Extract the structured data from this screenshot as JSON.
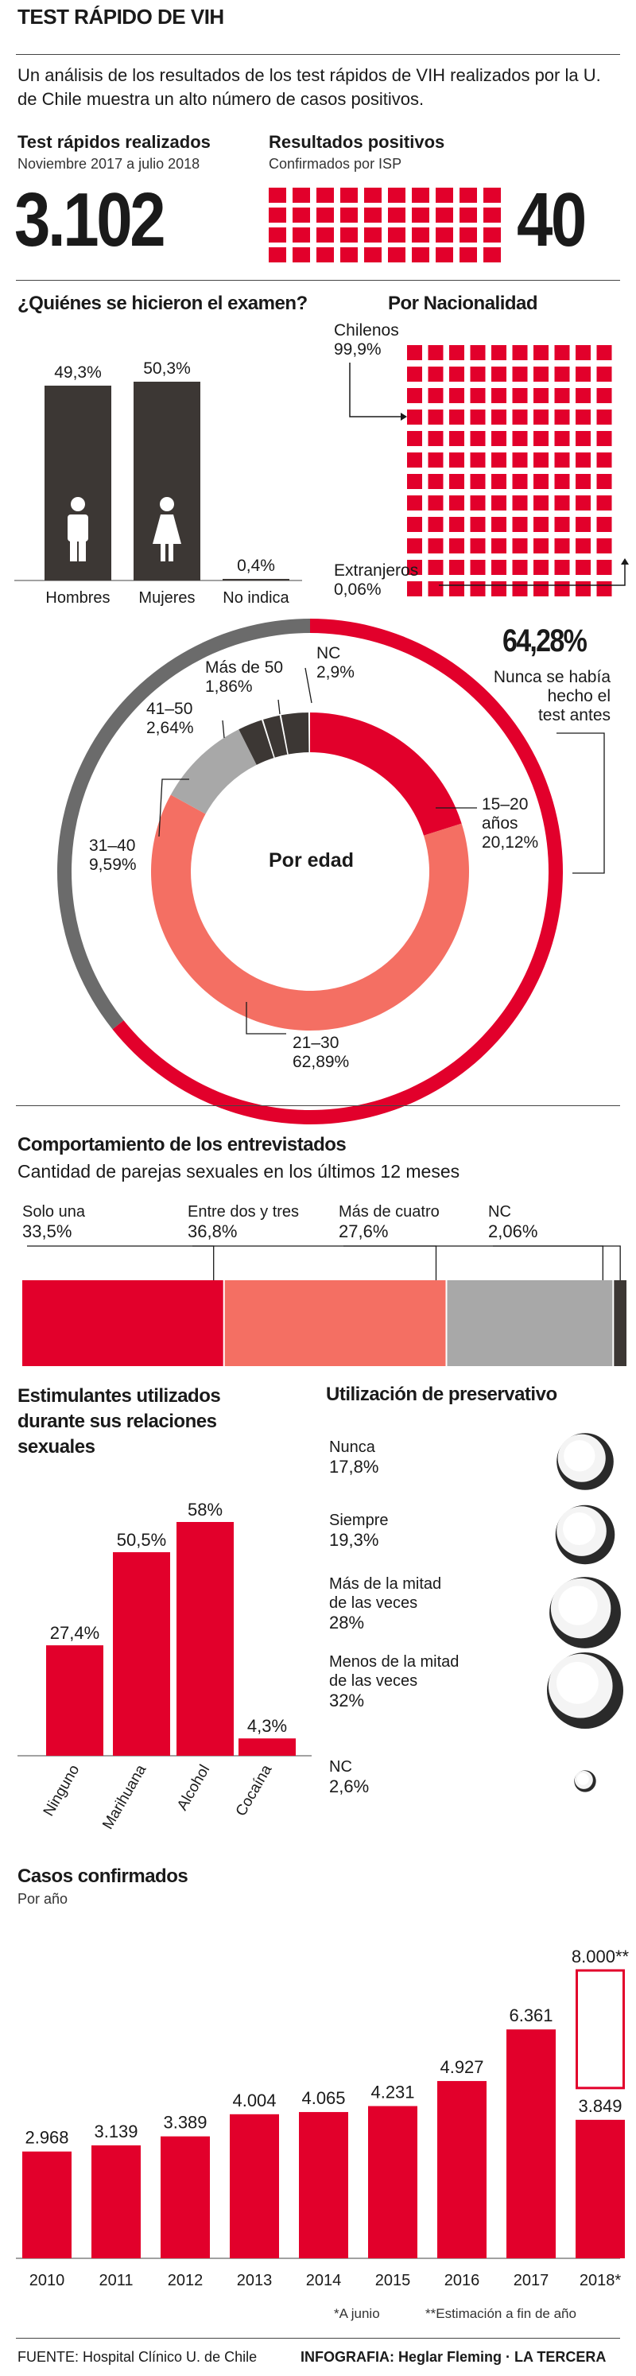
{
  "header": {
    "title": "TEST RÁPIDO DE VIH",
    "intro": "Un análisis de los resultados de los test rápidos de VIH realizados por la U. de Chile muestra un alto número de casos positivos.",
    "tests_title": "Test rápidos realizados",
    "tests_period": "Noviembre 2017 a julio 2018",
    "tests_value": "3.102",
    "positives_title": "Resultados positivos",
    "positives_sub": "Confirmados por ISP",
    "positives_value": "40"
  },
  "colors": {
    "red": "#e2002b",
    "salmon": "#f46f63",
    "gray": "#a8a8a8",
    "dark": "#3c3734",
    "ring_gray": "#6b6b6b"
  },
  "gender": {
    "title": "¿Quiénes se hicieron el examen?",
    "labels": [
      "Hombres",
      "Mujeres",
      "No indica"
    ],
    "value_labels": [
      "49,3%",
      "50,3%",
      "0,4%"
    ]
  },
  "nationality": {
    "title": "Por Nacionalidad",
    "chilenos_label": "Chilenos",
    "chilenos_value": "99,9%",
    "extranjeros_label": "Extranjeros",
    "extranjeros_value": "0,06%"
  },
  "age": {
    "center_label": "Por edad",
    "outer_value": "64,28%",
    "outer_note_1": "Nunca se había",
    "outer_note_2": "hecho el",
    "outer_note_3": "test antes",
    "labels": [
      {
        "name": "15–20",
        "name2": "años",
        "value": "20,12%"
      },
      {
        "name": "21–30",
        "value": "62,89%"
      },
      {
        "name": "31–40",
        "value": "9,59%"
      },
      {
        "name": "41–50",
        "value": "2,64%"
      },
      {
        "name": "Más de 50",
        "value": "1,86%"
      },
      {
        "name": "NC",
        "value": "2,9%"
      }
    ]
  },
  "behavior": {
    "title": "Comportamiento de los entrevistados",
    "subtitle": "Cantidad de parejas sexuales en los últimos 12 meses",
    "labels": [
      {
        "name": "Solo una",
        "value": "33,5%"
      },
      {
        "name": "Entre dos y tres",
        "value": "36,8%"
      },
      {
        "name": "Más de cuatro",
        "value": "27,6%"
      },
      {
        "name": "NC",
        "value": "2,06%"
      }
    ]
  },
  "stimulants": {
    "title_1": "Estimulantes utilizados",
    "title_2": "durante sus relaciones",
    "title_3": "sexuales",
    "value_labels": [
      "27,4%",
      "50,5%",
      "58%",
      "4,3%"
    ],
    "labels": [
      "Ninguno",
      "Marihuana",
      "Alcohol",
      "Cocaína"
    ]
  },
  "condom": {
    "title": "Utilización de preservativo",
    "items": [
      {
        "l1": "Nunca",
        "l2": "",
        "value": "17,8%"
      },
      {
        "l1": "Siempre",
        "l2": "",
        "value": "19,3%"
      },
      {
        "l1": "Más de la mitad",
        "l2": "de las veces",
        "value": "28%"
      },
      {
        "l1": "Menos de la mitad",
        "l2": "de las veces",
        "value": "32%"
      },
      {
        "l1": "NC",
        "l2": "",
        "value": "2,6%"
      }
    ]
  },
  "cases": {
    "title": "Casos confirmados",
    "subtitle": "Por año",
    "estimate_label": "8.000**",
    "foot_1": "*A junio",
    "foot_2": "**Estimación a fin de año",
    "value_labels": [
      "2.968",
      "3.139",
      "3.389",
      "4.004",
      "4.065",
      "4.231",
      "4.927",
      "6.361",
      "3.849"
    ],
    "years": [
      "2010",
      "2011",
      "2012",
      "2013",
      "2014",
      "2015",
      "2016",
      "2017",
      "2018*"
    ]
  },
  "footer": {
    "source": "FUENTE: Hospital Clínico U. de Chile",
    "credit": "INFOGRAFIA: Heglar Fleming · LA TERCERA"
  },
  "chart_data": [
    {
      "type": "bar",
      "title": "¿Quiénes se hicieron el examen?",
      "categories": [
        "Hombres",
        "Mujeres",
        "No indica"
      ],
      "values": [
        49.3,
        50.3,
        0.4
      ]
    },
    {
      "type": "pie",
      "title": "Por Nacionalidad",
      "categories": [
        "Chilenos",
        "Extranjeros"
      ],
      "values": [
        99.9,
        0.06
      ]
    },
    {
      "type": "pie",
      "title": "Por edad",
      "categories": [
        "15–20 años",
        "21–30",
        "31–40",
        "41–50",
        "Más de 50",
        "NC"
      ],
      "values": [
        20.12,
        62.89,
        9.59,
        2.64,
        1.86,
        2.9
      ],
      "outer_ring": {
        "label": "Nunca se había hecho el test antes",
        "value": 64.28
      }
    },
    {
      "type": "bar",
      "title": "Cantidad de parejas sexuales en los últimos 12 meses",
      "categories": [
        "Solo una",
        "Entre dos y tres",
        "Más de cuatro",
        "NC"
      ],
      "values": [
        33.5,
        36.8,
        27.6,
        2.06
      ]
    },
    {
      "type": "bar",
      "title": "Estimulantes utilizados durante sus relaciones sexuales",
      "categories": [
        "Ninguno",
        "Marihuana",
        "Alcohol",
        "Cocaína"
      ],
      "values": [
        27.4,
        50.5,
        58,
        4.3
      ]
    },
    {
      "type": "scatter",
      "title": "Utilización de preservativo",
      "categories": [
        "Nunca",
        "Siempre",
        "Más de la mitad de las veces",
        "Menos de la mitad de las veces",
        "NC"
      ],
      "values": [
        17.8,
        19.3,
        28,
        32,
        2.6
      ]
    },
    {
      "type": "bar",
      "title": "Casos confirmados",
      "categories": [
        "2010",
        "2011",
        "2012",
        "2013",
        "2014",
        "2015",
        "2016",
        "2017",
        "2018*"
      ],
      "values": [
        2968,
        3139,
        3389,
        4004,
        4065,
        4231,
        4927,
        6361,
        3849
      ],
      "estimate_2018": 8000
    }
  ]
}
